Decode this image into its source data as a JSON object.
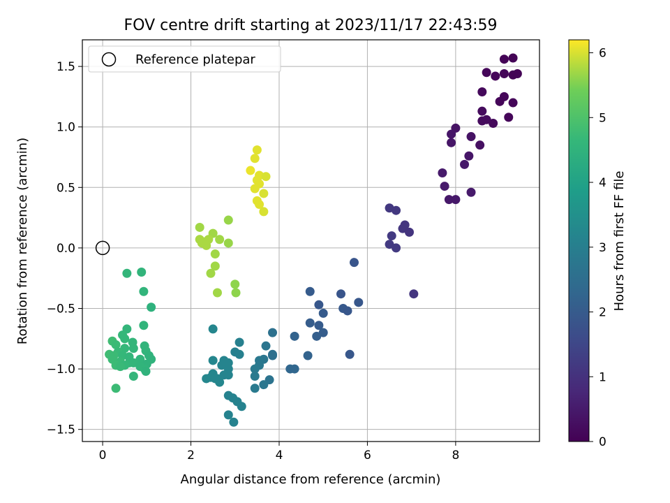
{
  "chart_data": {
    "type": "scatter",
    "title": "FOV centre drift starting at 2023/11/17 22:43:59",
    "xlabel": "Angular distance from reference (arcmin)",
    "ylabel": "Rotation from reference (arcmin)",
    "xlim": [
      -0.46,
      9.9
    ],
    "ylim": [
      -1.6,
      1.72
    ],
    "x_ticks": [
      0,
      2,
      4,
      6,
      8
    ],
    "y_ticks": [
      -1.5,
      -1.0,
      -0.5,
      0.0,
      0.5,
      1.0,
      1.5
    ],
    "x_tick_labels": [
      "0",
      "2",
      "4",
      "6",
      "8"
    ],
    "y_tick_labels": [
      "−1.5",
      "−1.0",
      "−0.5",
      "0.0",
      "0.5",
      "1.0",
      "1.5"
    ],
    "grid": true,
    "colormap": "viridis",
    "colorbar": {
      "label": "Hours from first FF file",
      "range": [
        0,
        6.2
      ],
      "ticks": [
        0,
        1,
        2,
        3,
        4,
        5,
        6
      ],
      "tick_labels": [
        "0",
        "1",
        "2",
        "3",
        "4",
        "5",
        "6"
      ]
    },
    "legend": {
      "position": "top-left",
      "entries": [
        "Reference platepar"
      ]
    },
    "reference_point": {
      "x": 0.0,
      "y": 0.0,
      "label": "Reference platepar"
    },
    "points": [
      {
        "x": 9.1,
        "y": 1.56,
        "h": 0.05
      },
      {
        "x": 9.3,
        "y": 1.57,
        "h": 0.05
      },
      {
        "x": 8.7,
        "y": 1.45,
        "h": 0.1
      },
      {
        "x": 8.9,
        "y": 1.42,
        "h": 0.1
      },
      {
        "x": 9.1,
        "y": 1.44,
        "h": 0.1
      },
      {
        "x": 9.3,
        "y": 1.43,
        "h": 0.05
      },
      {
        "x": 9.4,
        "y": 1.44,
        "h": 0.05
      },
      {
        "x": 8.6,
        "y": 1.29,
        "h": 0.15
      },
      {
        "x": 9.1,
        "y": 1.25,
        "h": 0.1
      },
      {
        "x": 9.0,
        "y": 1.21,
        "h": 0.1
      },
      {
        "x": 9.3,
        "y": 1.2,
        "h": 0.1
      },
      {
        "x": 8.6,
        "y": 1.13,
        "h": 0.2
      },
      {
        "x": 8.6,
        "y": 1.05,
        "h": 0.2
      },
      {
        "x": 8.7,
        "y": 1.06,
        "h": 0.2
      },
      {
        "x": 8.85,
        "y": 1.03,
        "h": 0.15
      },
      {
        "x": 9.2,
        "y": 1.08,
        "h": 0.1
      },
      {
        "x": 8.0,
        "y": 0.99,
        "h": 0.35
      },
      {
        "x": 7.9,
        "y": 0.94,
        "h": 0.4
      },
      {
        "x": 8.35,
        "y": 0.92,
        "h": 0.35
      },
      {
        "x": 7.9,
        "y": 0.87,
        "h": 0.4
      },
      {
        "x": 8.55,
        "y": 0.85,
        "h": 0.3
      },
      {
        "x": 8.3,
        "y": 0.76,
        "h": 0.4
      },
      {
        "x": 8.2,
        "y": 0.69,
        "h": 0.45
      },
      {
        "x": 7.7,
        "y": 0.62,
        "h": 0.5
      },
      {
        "x": 7.75,
        "y": 0.51,
        "h": 0.5
      },
      {
        "x": 8.35,
        "y": 0.46,
        "h": 0.5
      },
      {
        "x": 7.85,
        "y": 0.4,
        "h": 0.45
      },
      {
        "x": 8.0,
        "y": 0.4,
        "h": 0.45
      },
      {
        "x": 6.5,
        "y": 0.33,
        "h": 1.15
      },
      {
        "x": 6.65,
        "y": 0.31,
        "h": 1.15
      },
      {
        "x": 6.85,
        "y": 0.19,
        "h": 1.1
      },
      {
        "x": 6.8,
        "y": 0.16,
        "h": 1.1
      },
      {
        "x": 6.95,
        "y": 0.13,
        "h": 1.05
      },
      {
        "x": 6.55,
        "y": 0.1,
        "h": 1.2
      },
      {
        "x": 6.5,
        "y": 0.03,
        "h": 1.2
      },
      {
        "x": 6.65,
        "y": 0.0,
        "h": 1.2
      },
      {
        "x": 7.05,
        "y": -0.38,
        "h": 1.1
      },
      {
        "x": 5.7,
        "y": -0.12,
        "h": 1.85
      },
      {
        "x": 4.7,
        "y": -0.36,
        "h": 2.0
      },
      {
        "x": 5.4,
        "y": -0.38,
        "h": 1.85
      },
      {
        "x": 4.9,
        "y": -0.47,
        "h": 1.9
      },
      {
        "x": 5.8,
        "y": -0.45,
        "h": 1.9
      },
      {
        "x": 5.45,
        "y": -0.5,
        "h": 1.95
      },
      {
        "x": 5.55,
        "y": -0.52,
        "h": 1.9
      },
      {
        "x": 5.0,
        "y": -0.54,
        "h": 2.0
      },
      {
        "x": 4.7,
        "y": -0.62,
        "h": 2.05
      },
      {
        "x": 4.9,
        "y": -0.64,
        "h": 2.0
      },
      {
        "x": 5.0,
        "y": -0.7,
        "h": 2.05
      },
      {
        "x": 4.85,
        "y": -0.73,
        "h": 2.1
      },
      {
        "x": 4.35,
        "y": -0.73,
        "h": 2.2
      },
      {
        "x": 4.65,
        "y": -0.89,
        "h": 2.2
      },
      {
        "x": 5.6,
        "y": -0.88,
        "h": 1.9
      },
      {
        "x": 4.25,
        "y": -1.0,
        "h": 2.3
      },
      {
        "x": 4.35,
        "y": -1.0,
        "h": 2.3
      },
      {
        "x": 3.85,
        "y": -0.7,
        "h": 2.6
      },
      {
        "x": 3.7,
        "y": -0.81,
        "h": 2.7
      },
      {
        "x": 3.85,
        "y": -0.88,
        "h": 2.6
      },
      {
        "x": 3.85,
        "y": -0.89,
        "h": 2.55
      },
      {
        "x": 3.65,
        "y": -0.92,
        "h": 2.75
      },
      {
        "x": 3.55,
        "y": -0.93,
        "h": 2.8
      },
      {
        "x": 3.55,
        "y": -0.97,
        "h": 2.8
      },
      {
        "x": 3.45,
        "y": -1.0,
        "h": 2.85
      },
      {
        "x": 3.45,
        "y": -1.06,
        "h": 2.85
      },
      {
        "x": 3.78,
        "y": -1.09,
        "h": 2.65
      },
      {
        "x": 3.65,
        "y": -1.13,
        "h": 2.75
      },
      {
        "x": 3.45,
        "y": -1.16,
        "h": 2.85
      },
      {
        "x": 3.1,
        "y": -0.78,
        "h": 3.05
      },
      {
        "x": 3.0,
        "y": -0.86,
        "h": 3.05
      },
      {
        "x": 3.1,
        "y": -0.88,
        "h": 3.05
      },
      {
        "x": 2.5,
        "y": -0.67,
        "h": 3.2
      },
      {
        "x": 2.75,
        "y": -0.93,
        "h": 3.15
      },
      {
        "x": 2.85,
        "y": -0.95,
        "h": 3.15
      },
      {
        "x": 2.5,
        "y": -0.93,
        "h": 3.2
      },
      {
        "x": 2.7,
        "y": -0.97,
        "h": 3.15
      },
      {
        "x": 2.85,
        "y": -1.0,
        "h": 3.15
      },
      {
        "x": 2.85,
        "y": -1.05,
        "h": 3.15
      },
      {
        "x": 2.5,
        "y": -1.04,
        "h": 3.2
      },
      {
        "x": 2.45,
        "y": -1.07,
        "h": 3.2
      },
      {
        "x": 2.35,
        "y": -1.08,
        "h": 3.25
      },
      {
        "x": 2.6,
        "y": -1.08,
        "h": 3.2
      },
      {
        "x": 2.75,
        "y": -1.05,
        "h": 3.15
      },
      {
        "x": 2.55,
        "y": -1.08,
        "h": 3.2
      },
      {
        "x": 2.65,
        "y": -1.11,
        "h": 3.2
      },
      {
        "x": 2.85,
        "y": -1.22,
        "h": 3.1
      },
      {
        "x": 2.95,
        "y": -1.24,
        "h": 3.1
      },
      {
        "x": 3.05,
        "y": -1.27,
        "h": 3.1
      },
      {
        "x": 3.15,
        "y": -1.31,
        "h": 3.1
      },
      {
        "x": 2.85,
        "y": -1.38,
        "h": 3.1
      },
      {
        "x": 2.97,
        "y": -1.44,
        "h": 3.1
      },
      {
        "x": 0.55,
        "y": -0.21,
        "h": 4.6
      },
      {
        "x": 0.88,
        "y": -0.2,
        "h": 4.55
      },
      {
        "x": 0.93,
        "y": -0.36,
        "h": 4.55
      },
      {
        "x": 1.1,
        "y": -0.49,
        "h": 4.45
      },
      {
        "x": 0.93,
        "y": -0.64,
        "h": 4.55
      },
      {
        "x": 0.55,
        "y": -0.67,
        "h": 4.6
      },
      {
        "x": 0.45,
        "y": -0.72,
        "h": 4.65
      },
      {
        "x": 0.5,
        "y": -0.75,
        "h": 4.65
      },
      {
        "x": 0.22,
        "y": -0.77,
        "h": 4.8
      },
      {
        "x": 0.68,
        "y": -0.78,
        "h": 4.6
      },
      {
        "x": 0.3,
        "y": -0.8,
        "h": 4.75
      },
      {
        "x": 0.95,
        "y": -0.81,
        "h": 4.55
      },
      {
        "x": 0.5,
        "y": -0.83,
        "h": 4.65
      },
      {
        "x": 0.7,
        "y": -0.83,
        "h": 4.6
      },
      {
        "x": 0.98,
        "y": -0.85,
        "h": 4.55
      },
      {
        "x": 0.35,
        "y": -0.86,
        "h": 4.7
      },
      {
        "x": 0.15,
        "y": -0.88,
        "h": 4.8
      },
      {
        "x": 0.25,
        "y": -0.89,
        "h": 4.75
      },
      {
        "x": 0.45,
        "y": -0.89,
        "h": 4.65
      },
      {
        "x": 1.05,
        "y": -0.89,
        "h": 4.5
      },
      {
        "x": 0.6,
        "y": -0.9,
        "h": 4.6
      },
      {
        "x": 0.22,
        "y": -0.92,
        "h": 4.75
      },
      {
        "x": 0.85,
        "y": -0.92,
        "h": 4.55
      },
      {
        "x": 1.1,
        "y": -0.92,
        "h": 4.5
      },
      {
        "x": 0.4,
        "y": -0.94,
        "h": 4.7
      },
      {
        "x": 0.6,
        "y": -0.95,
        "h": 4.6
      },
      {
        "x": 0.7,
        "y": -0.95,
        "h": 4.6
      },
      {
        "x": 1.0,
        "y": -0.96,
        "h": 4.5
      },
      {
        "x": 0.3,
        "y": -0.97,
        "h": 4.75
      },
      {
        "x": 0.5,
        "y": -0.97,
        "h": 4.65
      },
      {
        "x": 0.85,
        "y": -0.98,
        "h": 4.55
      },
      {
        "x": 0.4,
        "y": -0.98,
        "h": 4.7
      },
      {
        "x": 0.95,
        "y": -1.0,
        "h": 4.55
      },
      {
        "x": 0.98,
        "y": -1.02,
        "h": 4.5
      },
      {
        "x": 0.7,
        "y": -1.06,
        "h": 4.6
      },
      {
        "x": 0.3,
        "y": -1.16,
        "h": 4.75
      },
      {
        "x": 2.2,
        "y": 0.17,
        "h": 5.7
      },
      {
        "x": 2.85,
        "y": 0.23,
        "h": 5.65
      },
      {
        "x": 2.5,
        "y": 0.12,
        "h": 5.7
      },
      {
        "x": 2.2,
        "y": 0.07,
        "h": 5.75
      },
      {
        "x": 2.4,
        "y": 0.07,
        "h": 5.75
      },
      {
        "x": 2.65,
        "y": 0.07,
        "h": 5.7
      },
      {
        "x": 2.3,
        "y": 0.05,
        "h": 5.75
      },
      {
        "x": 2.25,
        "y": 0.04,
        "h": 5.75
      },
      {
        "x": 2.85,
        "y": 0.04,
        "h": 5.65
      },
      {
        "x": 2.35,
        "y": 0.02,
        "h": 5.75
      },
      {
        "x": 2.55,
        "y": -0.05,
        "h": 5.7
      },
      {
        "x": 2.55,
        "y": -0.15,
        "h": 5.7
      },
      {
        "x": 2.45,
        "y": -0.21,
        "h": 5.7
      },
      {
        "x": 3.0,
        "y": -0.3,
        "h": 5.6
      },
      {
        "x": 2.6,
        "y": -0.37,
        "h": 5.7
      },
      {
        "x": 3.02,
        "y": -0.37,
        "h": 5.6
      },
      {
        "x": 3.5,
        "y": 0.81,
        "h": 6.05
      },
      {
        "x": 3.45,
        "y": 0.74,
        "h": 6.05
      },
      {
        "x": 3.35,
        "y": 0.64,
        "h": 6.1
      },
      {
        "x": 3.55,
        "y": 0.6,
        "h": 6.05
      },
      {
        "x": 3.7,
        "y": 0.59,
        "h": 6.0
      },
      {
        "x": 3.5,
        "y": 0.56,
        "h": 6.05
      },
      {
        "x": 3.55,
        "y": 0.53,
        "h": 6.05
      },
      {
        "x": 3.45,
        "y": 0.49,
        "h": 6.05
      },
      {
        "x": 3.65,
        "y": 0.45,
        "h": 6.0
      },
      {
        "x": 3.5,
        "y": 0.39,
        "h": 6.05
      },
      {
        "x": 3.55,
        "y": 0.36,
        "h": 6.05
      },
      {
        "x": 3.65,
        "y": 0.3,
        "h": 6.0
      }
    ]
  }
}
